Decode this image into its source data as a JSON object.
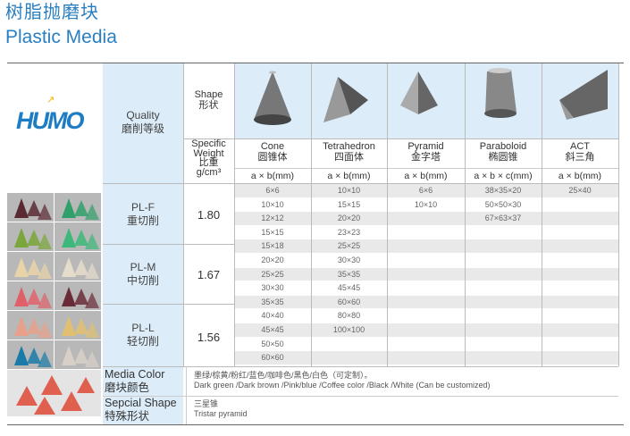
{
  "title": {
    "cn": "树脂抛磨块",
    "en": "Plastic Media"
  },
  "logo": "HUMO",
  "header": {
    "quality": {
      "en": "Quality",
      "cn": "磨削等级"
    },
    "shape": {
      "en": "Shape",
      "cn": "形状"
    },
    "specific_weight": {
      "en1": "Specific",
      "en2": "Weight",
      "cn": "比重",
      "unit": "g/cm³"
    },
    "columns": [
      {
        "en": "Cone",
        "cn": "圆锥体",
        "unit": "a × b(mm)",
        "icon": "cone-icon"
      },
      {
        "en": "Tetrahedron",
        "cn": "四面体",
        "unit": "a × b(mm)",
        "icon": "tetrahedron-icon"
      },
      {
        "en": "Pyramid",
        "cn": "金字塔",
        "unit": "a × b(mm)",
        "icon": "pyramid-icon"
      },
      {
        "en": "Paraboloid",
        "cn": "椭圆锥",
        "unit": "a × b × c(mm)",
        "icon": "paraboloid-icon"
      },
      {
        "en": "ACT",
        "cn": "斜三角",
        "unit": "a × b(mm)",
        "icon": "act-icon"
      }
    ]
  },
  "groups": [
    {
      "en": "PL-F",
      "cn": "重切削",
      "weight": "1.80"
    },
    {
      "en": "PL-M",
      "cn": "中切削",
      "weight": "1.67"
    },
    {
      "en": "PL-L",
      "cn": "轻切削",
      "weight": "1.56"
    }
  ],
  "rows": [
    [
      "6×6",
      "10×10",
      "6×6",
      "38×35×20",
      "25×40"
    ],
    [
      "10×10",
      "15×15",
      "10×10",
      "50×50×30",
      ""
    ],
    [
      "12×12",
      "20×20",
      "",
      "67×63×37",
      ""
    ],
    [
      "15×15",
      "23×23",
      "",
      "",
      ""
    ],
    [
      "15×18",
      "25×25",
      "",
      "",
      ""
    ],
    [
      "20×20",
      "30×30",
      "",
      "",
      ""
    ],
    [
      "25×25",
      "35×35",
      "",
      "",
      ""
    ],
    [
      "30×30",
      "45×45",
      "",
      "",
      ""
    ],
    [
      "35×35",
      "60×60",
      "",
      "",
      ""
    ],
    [
      "40×40",
      "80×80",
      "",
      "",
      ""
    ],
    [
      "45×45",
      "100×100",
      "",
      "",
      ""
    ],
    [
      "50×50",
      "",
      "",
      "",
      ""
    ],
    [
      "60×60",
      "",
      "",
      "",
      ""
    ]
  ],
  "media_color": {
    "en": "Media Color",
    "cn": "磨块颜色",
    "value_cn": "墨绿/棕黄/粉红/蓝色/咖啡色/黑色/白色（可定制）。",
    "value_en": "Dark green /Dark brown /Pink/blue /Coffee color /Black /White (Can be customized)"
  },
  "special_shape": {
    "en": "Sepcial Shape",
    "cn": "特殊形状",
    "value_cn": "三星锥",
    "value_en": "Tristar pyramid"
  },
  "photo_colors": [
    "#5a2a33",
    "#2fa06a",
    "#7aa63a",
    "#3cb87a",
    "#e8d4a8",
    "#e6dccb",
    "#e0606a",
    "#6a2a38",
    "#e8a08a",
    "#e0c070",
    "#1a7aa8",
    "#d8d0c8",
    "#e06050"
  ]
}
